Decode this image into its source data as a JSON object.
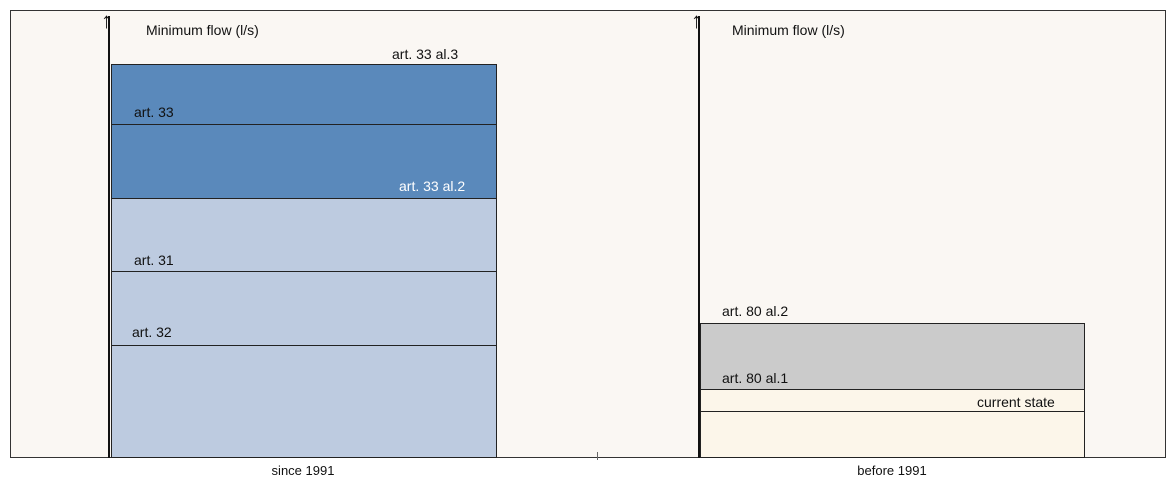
{
  "left_panel": {
    "axis_label": "Minimum flow (l/s)",
    "caption": "since 1991",
    "labels": {
      "art33al3": "art. 33 al.3",
      "art33": "art. 33",
      "art33al2": "art. 33 al.2",
      "art31": "art. 31",
      "art32": "art. 32"
    }
  },
  "right_panel": {
    "axis_label": "Minimum flow (l/s)",
    "caption": "before 1991",
    "labels": {
      "art80al2": "art. 80  al.2",
      "art80al1": "art. 80  al.1",
      "current_state": "current state"
    }
  },
  "colors": {
    "dark_blue": "#5a89bb",
    "light_blue": "#bdcbe0",
    "gray": "#cbcbcb",
    "cream": "#fcf6ea",
    "background": "#faf7f3"
  }
}
